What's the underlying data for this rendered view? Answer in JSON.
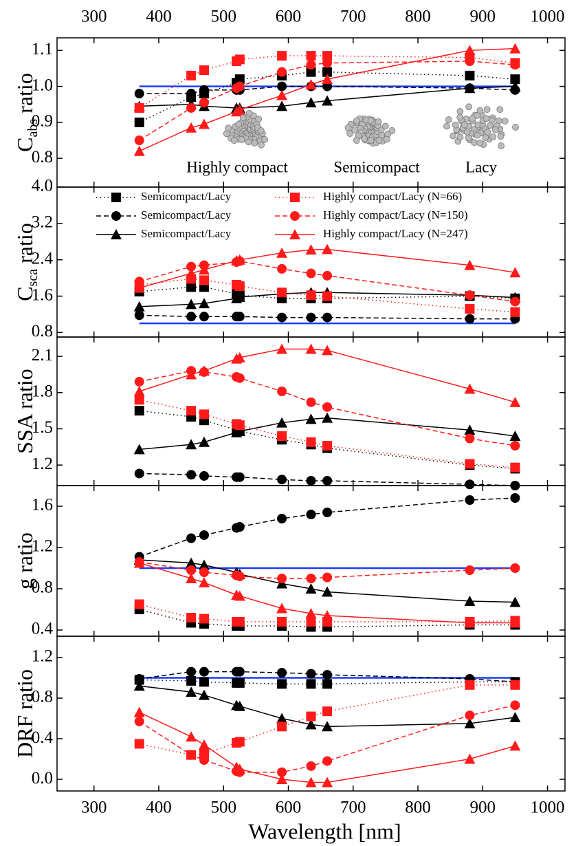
{
  "chart_data": [
    {
      "type": "line",
      "ylabel": "C",
      "ylabel_sub": "abs",
      "ylabel_suffix": "ratio",
      "x": [
        370,
        450,
        470,
        520,
        525,
        590,
        635,
        660,
        880,
        950
      ],
      "xlim": [
        243,
        1027
      ],
      "xticks": [
        300,
        400,
        500,
        600,
        700,
        800,
        900,
        1000
      ],
      "ylim": [
        0.72,
        1.135
      ],
      "yticks": [
        0.8,
        0.9,
        {
          "value": 1,
          "label": "1.0"
        },
        1.1
      ],
      "reference_line": {
        "value": 1,
        "color": "#1a3cff"
      },
      "annotations": [
        "Highly compact",
        "Semicompact",
        "Lacy"
      ],
      "series": [
        {
          "color": "#000000",
          "marker": "square",
          "dash": "dotted",
          "values": [
            0.9,
            0.97,
            0.98,
            1.01,
            1.02,
            1.03,
            1.04,
            1.04,
            1.03,
            1.02
          ]
        },
        {
          "color": "#000000",
          "marker": "circle",
          "dash": "dashed",
          "values": [
            0.98,
            0.98,
            0.99,
            0.99,
            0.99,
            1.0,
            1.0,
            1.0,
            0.995,
            0.99
          ]
        },
        {
          "color": "#000000",
          "marker": "triangle",
          "dash": "solid",
          "values": [
            0.945,
            0.95,
            0.945,
            0.94,
            0.94,
            0.945,
            0.955,
            0.96,
            0.995,
            1.0
          ]
        },
        {
          "color": "#ff1a1a",
          "marker": "square",
          "dash": "dotted",
          "values": [
            0.94,
            1.03,
            1.045,
            1.07,
            1.075,
            1.085,
            1.085,
            1.085,
            1.08,
            1.065
          ]
        },
        {
          "color": "#ff1a1a",
          "marker": "circle",
          "dash": "dashed",
          "values": [
            0.85,
            0.94,
            0.955,
            0.995,
            1.0,
            1.04,
            1.06,
            1.065,
            1.07,
            1.06
          ]
        },
        {
          "color": "#ff1a1a",
          "marker": "triangle",
          "dash": "solid",
          "values": [
            0.82,
            0.885,
            0.895,
            0.93,
            0.935,
            0.975,
            1.005,
            1.02,
            1.1,
            1.105
          ]
        }
      ]
    },
    {
      "type": "line",
      "ylabel": "C",
      "ylabel_sub": "sca",
      "ylabel_suffix": "ratio",
      "x": [
        370,
        450,
        470,
        520,
        525,
        590,
        635,
        660,
        880,
        950
      ],
      "xlim": [
        243,
        1027
      ],
      "xticks": [
        300,
        400,
        500,
        600,
        700,
        800,
        900,
        1000
      ],
      "ylim": [
        0.7,
        4.0
      ],
      "yticks": [
        0.8,
        1.6,
        2.4,
        3.2,
        {
          "value": 4,
          "label": "4.0"
        }
      ],
      "reference_line": {
        "value": 1,
        "color": "#1a3cff"
      },
      "series": [
        {
          "name": "Semicompact/Lacy",
          "color": "#000000",
          "marker": "square",
          "dash": "dotted",
          "values": [
            1.7,
            1.8,
            1.8,
            1.65,
            1.62,
            1.55,
            1.55,
            1.55,
            1.6,
            1.55
          ]
        },
        {
          "name": "Semicompact/Lacy",
          "color": "#000000",
          "marker": "circle",
          "dash": "dashed",
          "values": [
            1.18,
            1.15,
            1.15,
            1.15,
            1.15,
            1.13,
            1.13,
            1.13,
            1.1,
            1.1
          ]
        },
        {
          "name": "Semicompact/Lacy",
          "color": "#000000",
          "marker": "triangle",
          "dash": "solid",
          "values": [
            1.37,
            1.42,
            1.44,
            1.55,
            1.58,
            1.65,
            1.68,
            1.68,
            1.62,
            1.57
          ]
        },
        {
          "name": "Highly compact/Lacy  (N=66)",
          "color": "#ff1a1a",
          "marker": "square",
          "dash": "dotted",
          "values": [
            1.85,
            1.98,
            1.95,
            1.85,
            1.82,
            1.68,
            1.62,
            1.6,
            1.32,
            1.25
          ]
        },
        {
          "name": "Highly compact/Lacy  (N=150)",
          "color": "#ff1a1a",
          "marker": "circle",
          "dash": "dashed",
          "values": [
            1.92,
            2.25,
            2.28,
            2.35,
            2.37,
            2.2,
            2.1,
            2.05,
            1.62,
            1.48
          ]
        },
        {
          "name": "Highly compact/Lacy  (N=247)",
          "color": "#ff1a1a",
          "marker": "triangle",
          "dash": "solid",
          "values": [
            1.78,
            2.1,
            2.18,
            2.38,
            2.4,
            2.55,
            2.62,
            2.63,
            2.28,
            2.12
          ]
        }
      ]
    },
    {
      "type": "line",
      "ylabel": "SSA ratio",
      "x": [
        370,
        450,
        470,
        520,
        525,
        590,
        635,
        660,
        880,
        950
      ],
      "xlim": [
        243,
        1027
      ],
      "xticks": [
        300,
        400,
        500,
        600,
        700,
        800,
        900,
        1000
      ],
      "ylim": [
        1.03,
        2.26
      ],
      "yticks": [
        1.2,
        1.5,
        1.8,
        2.1
      ],
      "series": [
        {
          "color": "#000000",
          "marker": "square",
          "dash": "dotted",
          "values": [
            1.65,
            1.6,
            1.57,
            1.49,
            1.48,
            1.41,
            1.37,
            1.34,
            1.2,
            1.17
          ]
        },
        {
          "color": "#000000",
          "marker": "circle",
          "dash": "dashed",
          "values": [
            1.13,
            1.12,
            1.11,
            1.1,
            1.1,
            1.08,
            1.07,
            1.07,
            1.04,
            1.03
          ]
        },
        {
          "color": "#000000",
          "marker": "triangle",
          "dash": "solid",
          "values": [
            1.33,
            1.37,
            1.39,
            1.47,
            1.48,
            1.55,
            1.58,
            1.59,
            1.49,
            1.44
          ]
        },
        {
          "color": "#ff1a1a",
          "marker": "square",
          "dash": "dotted",
          "values": [
            1.74,
            1.65,
            1.62,
            1.54,
            1.53,
            1.44,
            1.39,
            1.36,
            1.21,
            1.18
          ]
        },
        {
          "color": "#ff1a1a",
          "marker": "circle",
          "dash": "dashed",
          "values": [
            1.89,
            1.98,
            1.97,
            1.93,
            1.92,
            1.81,
            1.72,
            1.68,
            1.42,
            1.36
          ]
        },
        {
          "color": "#ff1a1a",
          "marker": "triangle",
          "dash": "solid",
          "values": [
            1.81,
            1.95,
            1.98,
            2.08,
            2.09,
            2.16,
            2.16,
            2.15,
            1.83,
            1.72
          ]
        }
      ]
    },
    {
      "type": "line",
      "ylabel": "g ratio",
      "x": [
        370,
        450,
        470,
        520,
        525,
        590,
        635,
        660,
        880,
        950
      ],
      "xlim": [
        243,
        1027
      ],
      "xticks": [
        300,
        400,
        500,
        600,
        700,
        800,
        900,
        1000
      ],
      "ylim": [
        0.34,
        1.8
      ],
      "yticks": [
        0.4,
        0.8,
        1.2,
        1.6
      ],
      "reference_line": {
        "value": 1,
        "color": "#1a3cff"
      },
      "series": [
        {
          "color": "#000000",
          "marker": "square",
          "dash": "dotted",
          "values": [
            0.6,
            0.47,
            0.46,
            0.44,
            0.44,
            0.44,
            0.43,
            0.43,
            0.45,
            0.45
          ]
        },
        {
          "color": "#000000",
          "marker": "circle",
          "dash": "dashed",
          "values": [
            1.11,
            1.29,
            1.32,
            1.39,
            1.4,
            1.48,
            1.52,
            1.54,
            1.66,
            1.68
          ]
        },
        {
          "color": "#000000",
          "marker": "triangle",
          "dash": "solid",
          "values": [
            1.08,
            1.05,
            1.03,
            0.96,
            0.94,
            0.85,
            0.8,
            0.77,
            0.68,
            0.67
          ]
        },
        {
          "color": "#ff1a1a",
          "marker": "square",
          "dash": "dotted",
          "values": [
            0.65,
            0.52,
            0.51,
            0.48,
            0.48,
            0.48,
            0.48,
            0.48,
            0.48,
            0.49
          ]
        },
        {
          "color": "#ff1a1a",
          "marker": "circle",
          "dash": "dashed",
          "values": [
            1.06,
            0.98,
            0.96,
            0.93,
            0.92,
            0.9,
            0.9,
            0.91,
            0.98,
            1.0
          ]
        },
        {
          "color": "#ff1a1a",
          "marker": "triangle",
          "dash": "solid",
          "values": [
            1.05,
            0.9,
            0.86,
            0.74,
            0.73,
            0.61,
            0.56,
            0.54,
            0.47,
            0.47
          ]
        }
      ]
    },
    {
      "type": "line",
      "ylabel": "DRF ratio",
      "xlabel": "Wavelength [nm]",
      "x": [
        370,
        450,
        470,
        520,
        525,
        590,
        635,
        660,
        880,
        950
      ],
      "xlim": [
        243,
        1027
      ],
      "xticks": [
        300,
        400,
        500,
        600,
        700,
        800,
        900,
        1000
      ],
      "ylim": [
        -0.115,
        1.41
      ],
      "yticks": [
        {
          "value": 0,
          "label": "0.0"
        },
        0.4,
        0.8,
        1.2
      ],
      "reference_line": {
        "value": 1,
        "color": "#1a3cff"
      },
      "series": [
        {
          "color": "#000000",
          "marker": "square",
          "dash": "dotted",
          "values": [
            0.98,
            0.97,
            0.96,
            0.95,
            0.95,
            0.94,
            0.94,
            0.94,
            0.96,
            0.96
          ]
        },
        {
          "color": "#000000",
          "marker": "circle",
          "dash": "dashed",
          "values": [
            0.99,
            1.06,
            1.06,
            1.06,
            1.06,
            1.05,
            1.04,
            1.03,
            0.99,
            0.96
          ]
        },
        {
          "color": "#000000",
          "marker": "triangle",
          "dash": "solid",
          "values": [
            0.92,
            0.86,
            0.83,
            0.73,
            0.72,
            0.6,
            0.54,
            0.52,
            0.55,
            0.61
          ]
        },
        {
          "color": "#ff1a1a",
          "marker": "square",
          "dash": "dotted",
          "values": [
            0.35,
            0.24,
            0.25,
            0.36,
            0.37,
            0.52,
            0.62,
            0.67,
            0.93,
            0.93
          ]
        },
        {
          "color": "#ff1a1a",
          "marker": "circle",
          "dash": "dashed",
          "values": [
            0.57,
            0.24,
            0.19,
            0.08,
            0.07,
            0.07,
            0.13,
            0.18,
            0.63,
            0.73
          ]
        },
        {
          "color": "#ff1a1a",
          "marker": "triangle",
          "dash": "solid",
          "values": [
            0.66,
            0.42,
            0.34,
            0.12,
            0.1,
            0.0,
            -0.03,
            -0.03,
            0.2,
            0.33
          ]
        }
      ]
    }
  ]
}
